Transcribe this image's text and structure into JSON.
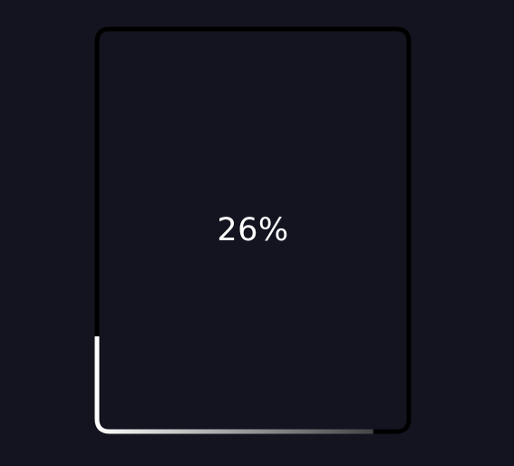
{
  "loader": {
    "percent_label": "26%",
    "progress": 0.26,
    "track_color": "#000000",
    "fill_color_start": "#ffffff",
    "fill_color_end": "#2a2a2e",
    "background_color": "#141420"
  }
}
